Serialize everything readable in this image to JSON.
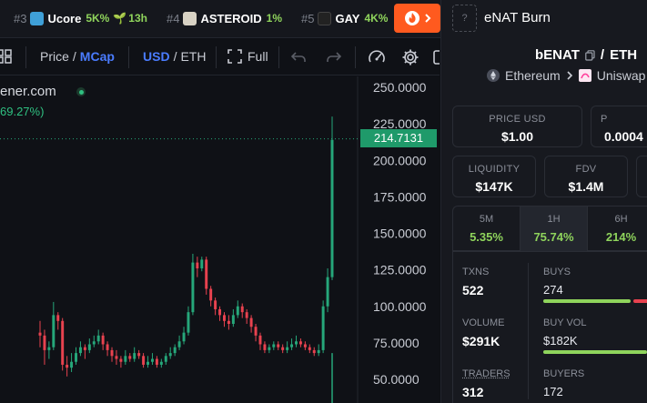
{
  "trending": [
    {
      "rank": "#3",
      "symbol": "Ucore",
      "change": "5K%",
      "age": "13h",
      "icon_color": "#3fa0d8"
    },
    {
      "rank": "#4",
      "symbol": "ASTEROID",
      "change": "1%",
      "age": "",
      "icon_color": "#d8d2c4"
    },
    {
      "rank": "#5",
      "symbol": "GAY",
      "change": "4K%",
      "age": "",
      "icon_color": "#222222"
    }
  ],
  "token_header": {
    "placeholder": "?",
    "name": "eNAT Burn"
  },
  "toolbar": {
    "price_label": "Price",
    "slash": "/",
    "mcap_label": "MCap",
    "usd_label": "USD",
    "eth_label": "ETH",
    "full_label": "Full"
  },
  "chart_meta": {
    "site": "ener.com",
    "pct": "69.27%)",
    "current_price": "214.7131"
  },
  "chart_data": {
    "type": "candlestick",
    "ylim": [
      40,
      262
    ],
    "y_ticks": [
      "250.0000",
      "225.0000",
      "200.0000",
      "175.0000",
      "150.0000",
      "125.0000",
      "100.0000",
      "75.0000",
      "50.0000"
    ],
    "y_tick_values": [
      250,
      225,
      200,
      175,
      150,
      125,
      100,
      75,
      50
    ],
    "current_price": 214.7131,
    "candles": [
      [
        82,
        80,
        90,
        72
      ],
      [
        80,
        70,
        84,
        60
      ],
      [
        70,
        72,
        76,
        64
      ],
      [
        72,
        94,
        103,
        70
      ],
      [
        94,
        90,
        96,
        84
      ],
      [
        90,
        60,
        92,
        56
      ],
      [
        60,
        58,
        66,
        52
      ],
      [
        58,
        62,
        68,
        55
      ],
      [
        62,
        68,
        72,
        60
      ],
      [
        68,
        72,
        76,
        66
      ],
      [
        72,
        70,
        74,
        64
      ],
      [
        70,
        74,
        78,
        68
      ],
      [
        74,
        76,
        80,
        72
      ],
      [
        76,
        80,
        84,
        74
      ],
      [
        80,
        74,
        82,
        70
      ],
      [
        74,
        70,
        76,
        66
      ],
      [
        70,
        66,
        72,
        62
      ],
      [
        66,
        64,
        70,
        60
      ],
      [
        64,
        62,
        66,
        58
      ],
      [
        62,
        66,
        70,
        60
      ],
      [
        66,
        64,
        68,
        62
      ],
      [
        64,
        68,
        72,
        62
      ],
      [
        68,
        66,
        70,
        64
      ],
      [
        66,
        60,
        68,
        58
      ],
      [
        60,
        62,
        66,
        58
      ],
      [
        62,
        64,
        68,
        60
      ],
      [
        64,
        60,
        66,
        58
      ],
      [
        60,
        62,
        64,
        58
      ],
      [
        62,
        66,
        68,
        60
      ],
      [
        66,
        68,
        72,
        64
      ],
      [
        68,
        72,
        74,
        66
      ],
      [
        72,
        76,
        80,
        70
      ],
      [
        76,
        82,
        86,
        74
      ],
      [
        82,
        96,
        100,
        80
      ],
      [
        96,
        130,
        136,
        94
      ],
      [
        130,
        126,
        134,
        120
      ],
      [
        126,
        132,
        134,
        124
      ],
      [
        132,
        112,
        134,
        108
      ],
      [
        112,
        104,
        114,
        100
      ],
      [
        104,
        98,
        106,
        94
      ],
      [
        98,
        94,
        100,
        90
      ],
      [
        94,
        90,
        96,
        86
      ],
      [
        90,
        88,
        94,
        84
      ],
      [
        88,
        94,
        98,
        86
      ],
      [
        94,
        100,
        104,
        92
      ],
      [
        100,
        96,
        102,
        92
      ],
      [
        96,
        92,
        98,
        88
      ],
      [
        92,
        86,
        94,
        82
      ],
      [
        86,
        80,
        88,
        76
      ],
      [
        80,
        74,
        82,
        70
      ],
      [
        74,
        70,
        76,
        68
      ],
      [
        70,
        72,
        74,
        68
      ],
      [
        72,
        74,
        76,
        70
      ],
      [
        74,
        72,
        76,
        70
      ],
      [
        72,
        70,
        74,
        68
      ],
      [
        70,
        72,
        76,
        68
      ],
      [
        72,
        74,
        78,
        70
      ],
      [
        74,
        76,
        80,
        72
      ],
      [
        76,
        74,
        78,
        72
      ],
      [
        74,
        72,
        76,
        70
      ],
      [
        72,
        70,
        74,
        68
      ],
      [
        70,
        68,
        72,
        66
      ],
      [
        68,
        70,
        74,
        66
      ],
      [
        70,
        100,
        104,
        68
      ],
      [
        100,
        120,
        126,
        96
      ],
      [
        120,
        214,
        230,
        118
      ]
    ]
  },
  "pair": {
    "base": "bENAT",
    "slash": "/",
    "quote": "ETH"
  },
  "chain": {
    "name": "Ethereum",
    "dex": "Uniswap"
  },
  "cards": {
    "price_usd": {
      "label": "PRICE USD",
      "value": "$1.00"
    },
    "price_native": {
      "label": "P",
      "value": "0.0004"
    },
    "liquidity": {
      "label": "LIQUIDITY",
      "value": "$147K"
    },
    "fdv": {
      "label": "FDV",
      "value": "$1.4M"
    }
  },
  "changes": [
    {
      "label": "5M",
      "value": "5.35%"
    },
    {
      "label": "1H",
      "value": "75.74%"
    },
    {
      "label": "6H",
      "value": "214%"
    }
  ],
  "stats": {
    "txns": {
      "label": "TXNS",
      "value": "522"
    },
    "buys": {
      "label": "BUYS",
      "value": "274",
      "fraction": 0.52
    },
    "volume": {
      "label": "VOLUME",
      "value": "$291K"
    },
    "buy_vol": {
      "label": "BUY VOL",
      "value": "$182K",
      "fraction": 0.62
    },
    "traders": {
      "label": "TRADERS",
      "value": "312"
    },
    "buyers": {
      "label": "BUYERS",
      "value": "172"
    }
  },
  "colors": {
    "up": "#26a77a",
    "down": "#e8424f",
    "accent": "#4a7cff",
    "fire": "#ff5a1f"
  }
}
